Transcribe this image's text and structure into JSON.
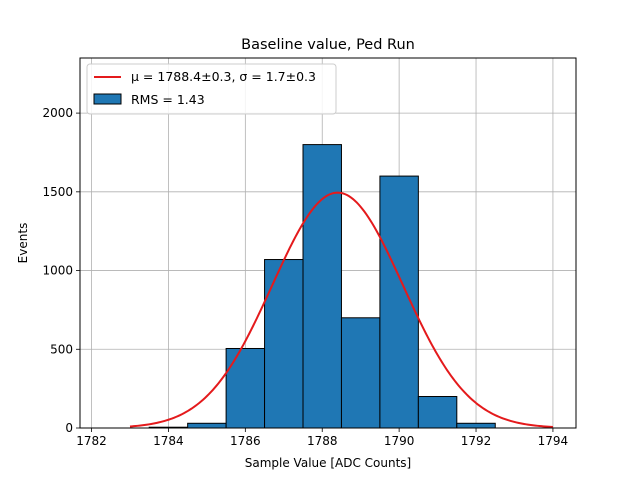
{
  "chart_data": {
    "type": "bar",
    "title": "Baseline value, Ped Run",
    "xlabel": "Sample Value [ADC Counts]",
    "ylabel": "Events",
    "xlim": [
      1781.7,
      1794.6
    ],
    "ylim": [
      0,
      2350
    ],
    "xticks": [
      1782,
      1784,
      1786,
      1788,
      1790,
      1792,
      1794
    ],
    "yticks": [
      0,
      500,
      1000,
      1500,
      2000
    ],
    "grid": true,
    "legend_position": "upper-left",
    "colors": {
      "bar_fill": "#1f77b4",
      "bar_edge": "#000000",
      "fit_line": "#e41a1c",
      "grid": "#b0b0b0"
    },
    "series": [
      {
        "name": "RMS = 1.43",
        "kind": "histogram",
        "bins": [
          {
            "x0": 1783.5,
            "x1": 1784.5,
            "value": 5
          },
          {
            "x0": 1784.5,
            "x1": 1785.5,
            "value": 30
          },
          {
            "x0": 1785.5,
            "x1": 1786.5,
            "value": 505
          },
          {
            "x0": 1786.5,
            "x1": 1787.5,
            "value": 1070
          },
          {
            "x0": 1787.5,
            "x1": 1788.5,
            "value": 1800
          },
          {
            "x0": 1788.5,
            "x1": 1789.5,
            "value": 700
          },
          {
            "x0": 1789.5,
            "x1": 1790.5,
            "value": 1600
          },
          {
            "x0": 1790.5,
            "x1": 1791.5,
            "value": 200
          },
          {
            "x0": 1791.5,
            "x1": 1792.5,
            "value": 30
          }
        ]
      },
      {
        "name": "μ = 1788.4±0.3, σ = 1.7±0.3",
        "kind": "gaussian-fit",
        "mu": 1788.4,
        "sigma": 1.7,
        "amplitude": 1495,
        "x_range": [
          1783,
          1794
        ]
      }
    ]
  }
}
